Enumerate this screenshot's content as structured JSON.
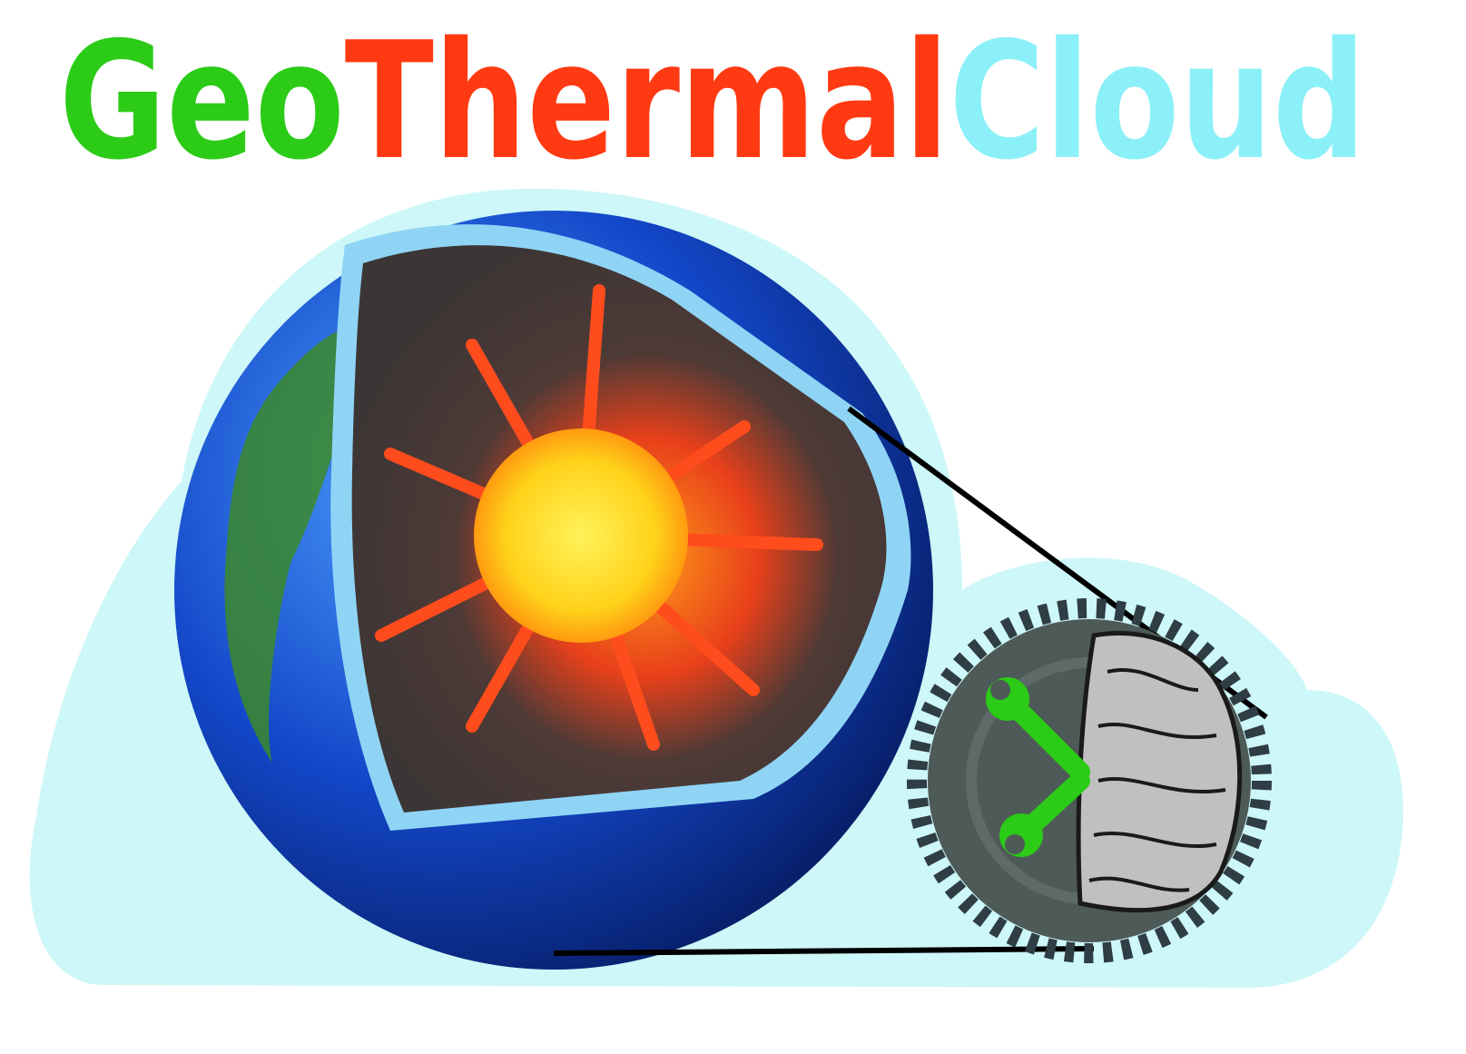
{
  "logo": {
    "words": [
      "Geo",
      "Thermal",
      "Cloud"
    ]
  }
}
